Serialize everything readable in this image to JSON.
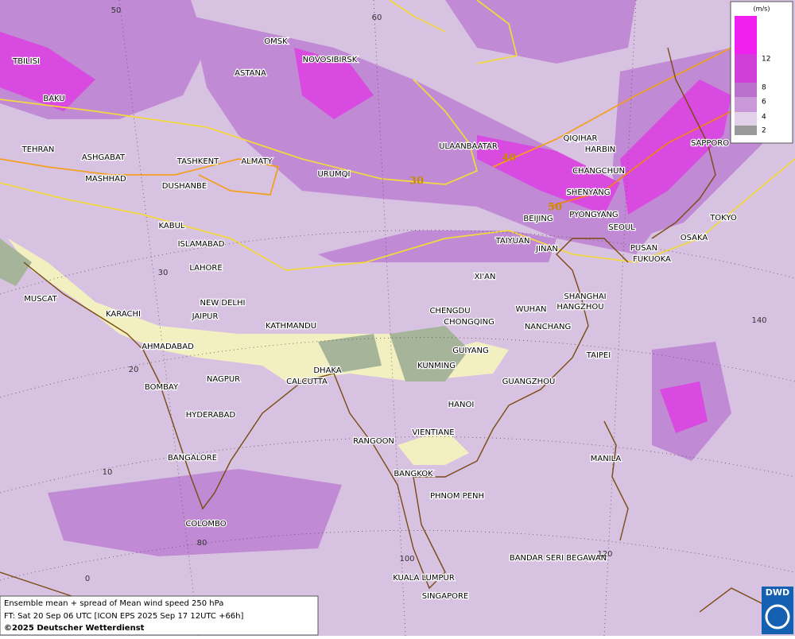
{
  "legend": {
    "title": "(m/s)",
    "labels": [
      "12",
      "8",
      "6",
      "4",
      "2"
    ]
  },
  "grid_labels": [
    "50",
    "60",
    "30",
    "20",
    "10",
    "0",
    "80",
    "100",
    "120",
    "140"
  ],
  "contour_labels": [
    "30",
    "40",
    "50"
  ],
  "cities": [
    "TBILISI",
    "BAKU",
    "OMSK",
    "NOVOSIBIRSK",
    "ASTANA",
    "TEHRAN",
    "ASHGABAT",
    "MASHHAD",
    "TASHKENT",
    "ALMATY",
    "DUSHANBE",
    "URUMQI",
    "ULAANBAATAR",
    "QIQIHAR",
    "HARBIN",
    "CHANGCHUN",
    "SHENYANG",
    "BEIJING",
    "PYONGYANG",
    "SEOUL",
    "SAPPORO",
    "TOKYO",
    "OSAKA",
    "PUSAN",
    "FUKUOKA",
    "TAIYUAN",
    "JINAN",
    "KABUL",
    "ISLAMABAD",
    "LAHORE",
    "XI'AN",
    "MUSCAT",
    "NEW DELHI",
    "JAIPUR",
    "KARACHI",
    "KATHMANDU",
    "CHENGDU",
    "CHONGQING",
    "WUHAN",
    "SHANGHAI",
    "HANGZHOU",
    "NANCHANG",
    "AHMADABAD",
    "GUIYANG",
    "TAIPEI",
    "KUNMING",
    "DHAKA",
    "CALCUTTA",
    "NAGPUR",
    "BOMBAY",
    "GUANGZHOU",
    "HANOI",
    "HYDERABAD",
    "RANGOON",
    "VIENTIANE",
    "MANILA",
    "BANGALORE",
    "BANGKOK",
    "PHNOM PENH",
    "COLOMBO",
    "BANDAR SERI BEGAWAN",
    "KUALA LUMPUR",
    "SINGAPORE"
  ],
  "footer": {
    "line1": "Ensemble mean + spread of Mean wind speed 250 hPa",
    "line2": "FT: Sat 20 Sep 06 UTC [ICON EPS 2025 Sep 17 12UTC +66h]",
    "copyright": "©2025 Deutscher Wetterdienst"
  },
  "logo": "DWD"
}
